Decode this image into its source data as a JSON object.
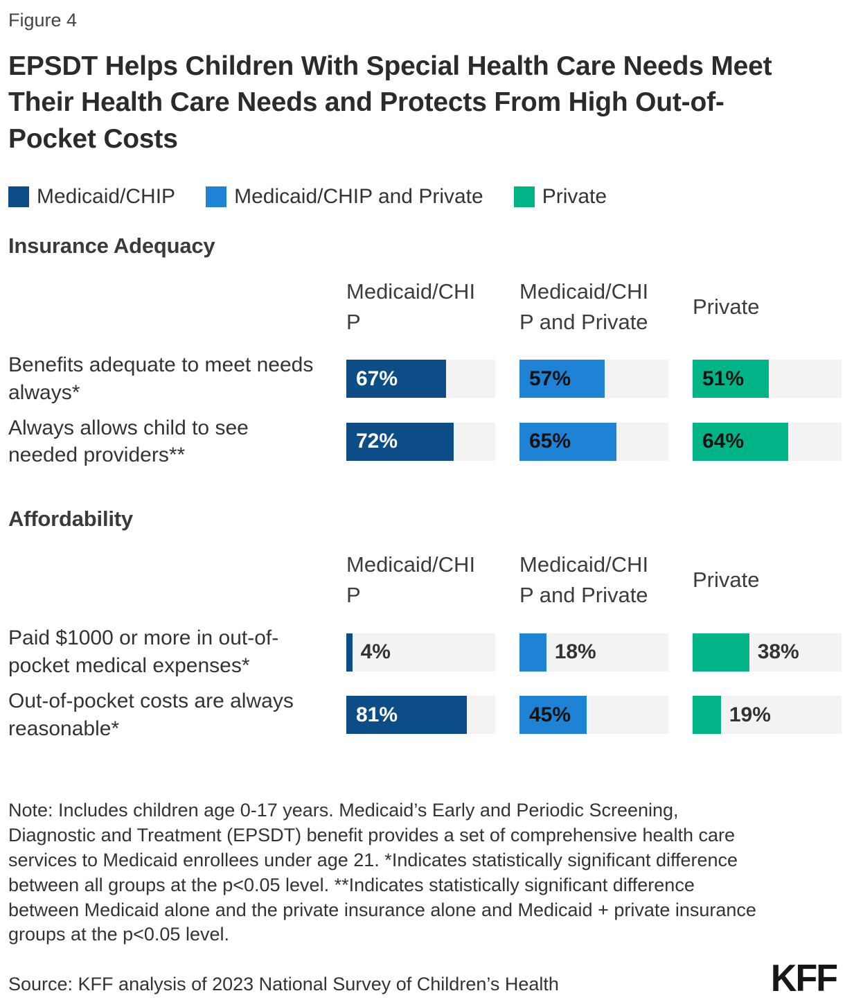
{
  "figure_label": "Figure 4",
  "title": "EPSDT Helps Children With Special Health Care Needs Meet Their Health Care Needs and Protects From High Out-of-Pocket Costs",
  "colors": {
    "medicaid_chip": "#0d4d87",
    "medicaid_chip_and_private": "#1f83d5",
    "private": "#00b488",
    "bar_track": "#f3f3f3",
    "label_inside_dark_bar": "#ffffff",
    "label_inside_light_bar": "#111111",
    "label_outside_bar": "#333333"
  },
  "legend": [
    {
      "label": "Medicaid/CHIP",
      "color": "#0d4d87"
    },
    {
      "label": "Medicaid/CHIP and Private",
      "color": "#1f83d5"
    },
    {
      "label": "Private",
      "color": "#00b488"
    }
  ],
  "columns": [
    {
      "label": "Medicaid/CHIP",
      "label_lines": [
        "Medicaid/CHI",
        "P"
      ]
    },
    {
      "label": "Medicaid/CHIP and Private",
      "label_lines": [
        "Medicaid/CHI",
        "P and Private"
      ]
    },
    {
      "label": "Private",
      "label_lines": [
        "Private"
      ]
    }
  ],
  "sections": [
    {
      "heading": "Insurance Adequacy",
      "rows": [
        {
          "label": "Benefits adequate to meet needs always*",
          "values": [
            67,
            57,
            51
          ]
        },
        {
          "label": "Always allows child to see needed providers**",
          "values": [
            72,
            65,
            64
          ]
        }
      ]
    },
    {
      "heading": "Affordability",
      "rows": [
        {
          "label": "Paid $1000 or more in out-of-pocket medical expenses*",
          "values": [
            4,
            18,
            38
          ]
        },
        {
          "label": "Out-of-pocket costs are always reasonable*",
          "values": [
            81,
            45,
            19
          ]
        }
      ]
    }
  ],
  "note": "Note: Includes children age 0-17 years. Medicaid’s Early and Periodic Screening, Diagnostic and Treatment (EPSDT) benefit provides a set of comprehensive health care services to Medicaid enrollees under age 21. *Indicates statistically significant difference between all groups at the p<0.05 level. **Indicates statistically significant difference between Medicaid alone and the private insurance alone and Medicaid + private insurance groups at the p<0.05 level.",
  "source": "Source: KFF analysis of 2023 National Survey of Children’s Health",
  "logo_text": "KFF",
  "chart_data": {
    "type": "bar",
    "orientation": "horizontal",
    "title": "EPSDT Helps Children With Special Health Care Needs Meet Their Health Care Needs and Protects From High Out-of-Pocket Costs",
    "figure": "Figure 4",
    "unit": "percent",
    "xlim": [
      0,
      100
    ],
    "grid": false,
    "legend_position": "top",
    "legend_entries": [
      "Medicaid/CHIP",
      "Medicaid/CHIP and Private",
      "Private"
    ],
    "sections": [
      {
        "name": "Insurance Adequacy",
        "categories": [
          "Benefits adequate to meet needs always*",
          "Always allows child to see needed providers**"
        ],
        "series": [
          {
            "name": "Medicaid/CHIP",
            "values": [
              67,
              72
            ]
          },
          {
            "name": "Medicaid/CHIP and Private",
            "values": [
              57,
              65
            ]
          },
          {
            "name": "Private",
            "values": [
              51,
              64
            ]
          }
        ]
      },
      {
        "name": "Affordability",
        "categories": [
          "Paid $1000 or more in out-of-pocket medical expenses*",
          "Out-of-pocket costs are always reasonable*"
        ],
        "series": [
          {
            "name": "Medicaid/CHIP",
            "values": [
              4,
              81
            ]
          },
          {
            "name": "Medicaid/CHIP and Private",
            "values": [
              18,
              45
            ]
          },
          {
            "name": "Private",
            "values": [
              38,
              19
            ]
          }
        ]
      }
    ],
    "annotations": [
      "Note: Includes children age 0-17 years. Medicaid’s Early and Periodic Screening, Diagnostic and Treatment (EPSDT) benefit provides a set of comprehensive health care services to Medicaid enrollees under age 21. *Indicates statistically significant difference between all groups at the p<0.05 level. **Indicates statistically significant difference between Medicaid alone and the private insurance alone and Medicaid + private insurance groups at the p<0.05 level.",
      "Source: KFF analysis of 2023 National Survey of Children’s Health"
    ]
  }
}
